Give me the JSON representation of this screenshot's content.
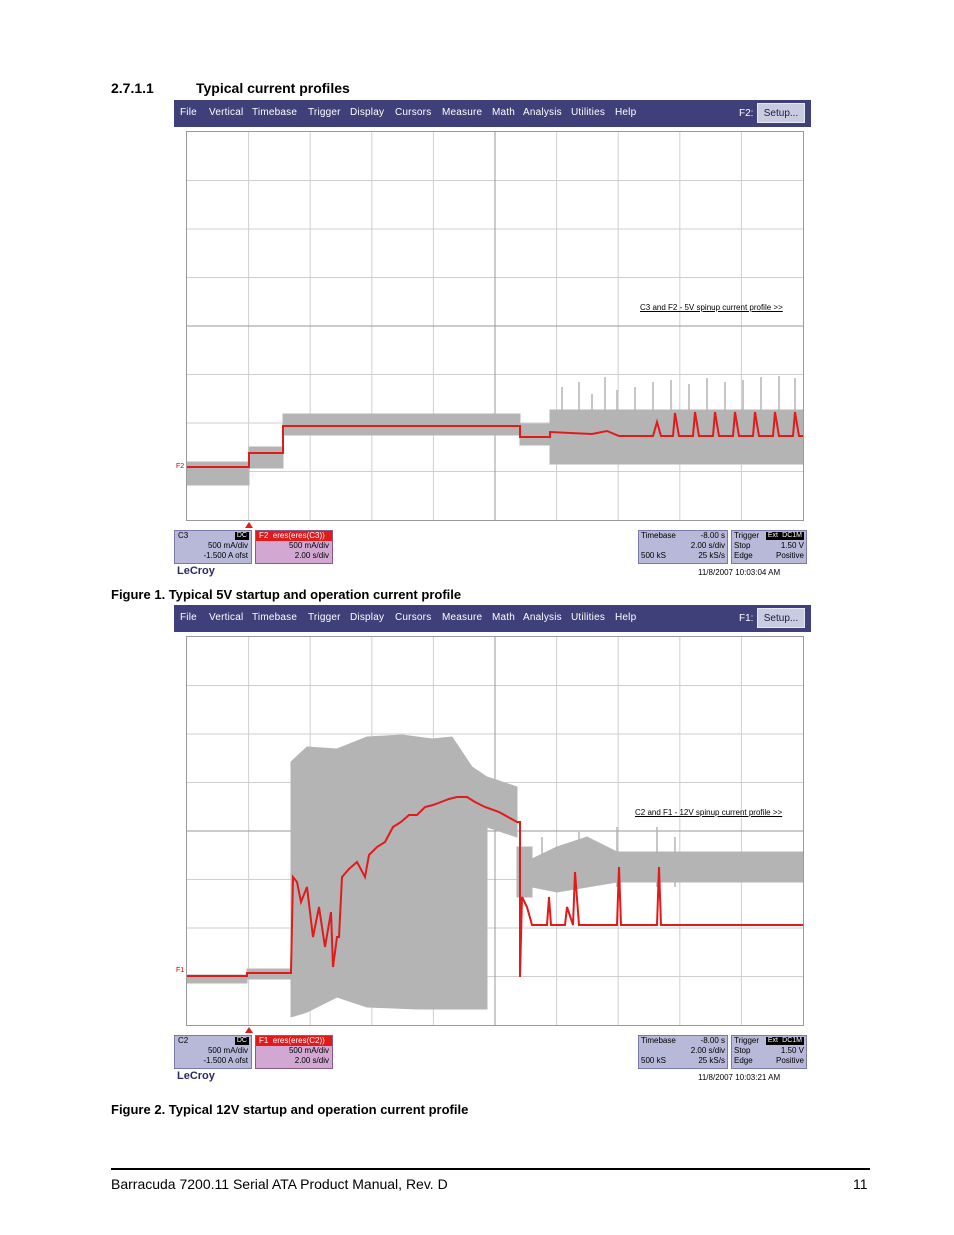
{
  "section": {
    "number": "2.7.1.1",
    "title": "Typical current profiles"
  },
  "menu": [
    "File",
    "Vertical",
    "Timebase",
    "Trigger",
    "Display",
    "Cursors",
    "Measure",
    "Math",
    "Analysis",
    "Utilities",
    "Help"
  ],
  "setup_label": "Setup...",
  "scopes": [
    {
      "fn_label": "F2:",
      "annotation": "C3 and F2 - 5V spinup current profile >>",
      "marker": "F2",
      "c_channel": {
        "name": "C3",
        "coupling": "DC",
        "scale": "500 mA/div",
        "offset": "-1.500 A ofst"
      },
      "f_channel": {
        "name": "F2",
        "title": "eres(eres(C3))",
        "scale": "500 mA/div",
        "time": "2.00 s/div"
      },
      "timebase": {
        "label": "Timebase",
        "delay": "-8.00 s",
        "per_div": "2.00 s/div",
        "samples": "500 kS",
        "rate": "25 kS/s"
      },
      "trigger": {
        "label": "Trigger",
        "badge1": "Ext",
        "badge2": "DC1M",
        "mode": "Stop",
        "level": "1.50 V",
        "type": "Edge",
        "slope": "Positive"
      },
      "brand": "LeCroy",
      "timestamp": "11/8/2007 10:03:04 AM",
      "caption": "Figure 1. Typical 5V startup and operation current profile"
    },
    {
      "fn_label": "F1:",
      "annotation": "C2 and F1 - 12V spinup current profile >>",
      "marker": "F1",
      "c_channel": {
        "name": "C2",
        "coupling": "DC",
        "scale": "500 mA/div",
        "offset": "-1.500 A ofst"
      },
      "f_channel": {
        "name": "F1",
        "title": "eres(eres(C2))",
        "scale": "500 mA/div",
        "time": "2.00 s/div"
      },
      "timebase": {
        "label": "Timebase",
        "delay": "-8.00 s",
        "per_div": "2.00 s/div",
        "samples": "500 kS",
        "rate": "25 kS/s"
      },
      "trigger": {
        "label": "Trigger",
        "badge1": "Ext",
        "badge2": "DC1M",
        "mode": "Stop",
        "level": "1.50 V",
        "type": "Edge",
        "slope": "Positive"
      },
      "brand": "LeCroy",
      "timestamp": "11/8/2007 10:03:21 AM",
      "caption": "Figure 2. Typical 12V startup and operation current profile"
    }
  ],
  "colors": {
    "menubar": "#3f3f7a",
    "trace_raw": "#b4b4b4",
    "trace_filtered": "#e21a1a",
    "panel": "#b8b8d8"
  },
  "footer": {
    "title": "Barracuda 7200.11 Serial ATA Product Manual, Rev. D",
    "page": "11"
  }
}
